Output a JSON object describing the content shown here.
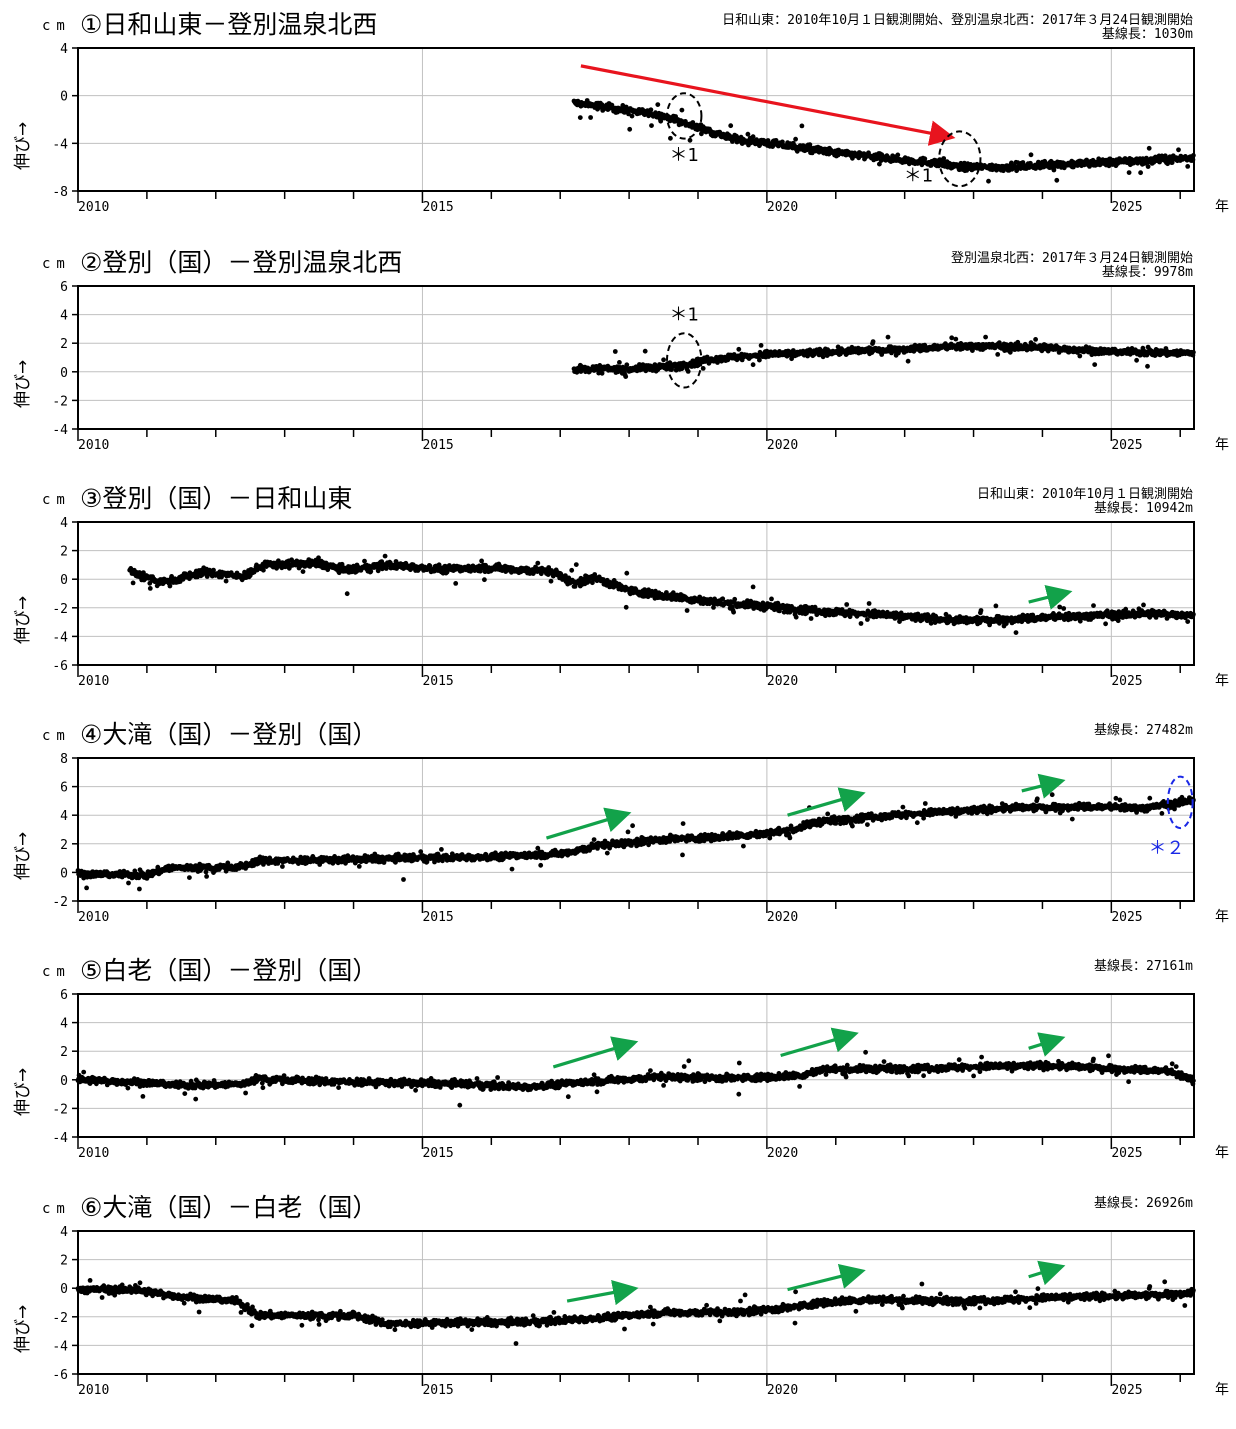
{
  "x_unit_label": "年",
  "y_axis_label": "伸び→",
  "y_unit": "cm",
  "colors": {
    "data": "#000000",
    "grid": "#c0c0c0",
    "red_arrow": "#e8141e",
    "green_arrow": "#12a24a",
    "blue_annotation": "#1a28e6"
  },
  "chart_data": [
    {
      "type": "scatter",
      "title": "①日和山東－登別温泉北西",
      "info_lines": [
        "日和山東：2010年10月１日観測開始、登別温泉北西：2017年３月24日観測開始",
        "基線長：1030m"
      ],
      "ylim": [
        -8,
        4
      ],
      "yticks": [
        4,
        0,
        -4,
        -8
      ],
      "xlim": [
        2010,
        2026.2
      ],
      "xtick_labels": [
        "2010",
        "2015",
        "2020",
        "2025"
      ],
      "grid": true,
      "series": [
        {
          "trend": [
            [
              2017.2,
              -0.6
            ],
            [
              2017.7,
              -1.0
            ],
            [
              2018.5,
              -1.7
            ],
            [
              2018.8,
              -2.3
            ],
            [
              2019.5,
              -3.6
            ],
            [
              2020.3,
              -4.2
            ],
            [
              2021.0,
              -4.8
            ],
            [
              2021.8,
              -5.3
            ],
            [
              2022.4,
              -5.6
            ],
            [
              2022.8,
              -6.0
            ],
            [
              2023.5,
              -6.0
            ],
            [
              2024.5,
              -5.7
            ],
            [
              2025.3,
              -5.5
            ],
            [
              2026.2,
              -5.2
            ]
          ],
          "start": 2017.2,
          "noise": 0.25
        }
      ],
      "annotations": [
        {
          "kind": "arrow",
          "color": "red",
          "from": [
            2017.3,
            2.5
          ],
          "to": [
            2022.6,
            -3.4
          ]
        },
        {
          "kind": "ellipse",
          "color": "black",
          "center": [
            2018.8,
            -1.7
          ],
          "rx": 0.25,
          "ry": 1.9
        },
        {
          "kind": "ellipse",
          "color": "black",
          "center": [
            2022.8,
            -5.3
          ],
          "rx": 0.3,
          "ry": 2.3
        },
        {
          "kind": "text",
          "color": "black",
          "text": "＊1",
          "at": [
            2018.8,
            -5.5
          ]
        },
        {
          "kind": "text",
          "color": "black",
          "text": "＊1",
          "at": [
            2022.2,
            -7.2
          ]
        }
      ]
    },
    {
      "type": "scatter",
      "title": "②登別（国）－登別温泉北西",
      "info_lines": [
        "登別温泉北西：2017年３月24日観測開始",
        "基線長：9978m"
      ],
      "ylim": [
        -4,
        6
      ],
      "yticks": [
        6,
        4,
        2,
        0,
        -2,
        -4
      ],
      "xlim": [
        2010,
        2026.2
      ],
      "xtick_labels": [
        "2010",
        "2015",
        "2020",
        "2025"
      ],
      "grid": true,
      "series": [
        {
          "trend": [
            [
              2017.2,
              0.2
            ],
            [
              2018.0,
              0.2
            ],
            [
              2018.7,
              0.4
            ],
            [
              2019.2,
              0.9
            ],
            [
              2020.0,
              1.2
            ],
            [
              2021.0,
              1.4
            ],
            [
              2022.0,
              1.6
            ],
            [
              2023.0,
              1.8
            ],
            [
              2024.0,
              1.7
            ],
            [
              2025.0,
              1.4
            ],
            [
              2026.2,
              1.3
            ]
          ],
          "start": 2017.2,
          "noise": 0.2
        }
      ],
      "annotations": [
        {
          "kind": "ellipse",
          "color": "black",
          "center": [
            2018.8,
            0.8
          ],
          "rx": 0.25,
          "ry": 1.9
        },
        {
          "kind": "text",
          "color": "black",
          "text": "＊1",
          "at": [
            2018.8,
            3.6
          ]
        }
      ]
    },
    {
      "type": "scatter",
      "title": "③登別（国）－日和山東",
      "info_lines": [
        "日和山東：2010年10月１日観測開始",
        "基線長：10942m"
      ],
      "ylim": [
        -6,
        4
      ],
      "yticks": [
        4,
        2,
        0,
        -2,
        -4,
        -6
      ],
      "xlim": [
        2010,
        2026.2
      ],
      "xtick_labels": [
        "2010",
        "2015",
        "2020",
        "2025"
      ],
      "grid": true,
      "series": [
        {
          "trend": [
            [
              2010.75,
              0.6
            ],
            [
              2011.0,
              0.1
            ],
            [
              2011.3,
              -0.2
            ],
            [
              2011.8,
              0.5
            ],
            [
              2012.4,
              0.2
            ],
            [
              2012.7,
              1.0
            ],
            [
              2013.5,
              1.1
            ],
            [
              2013.9,
              0.6
            ],
            [
              2014.5,
              1.0
            ],
            [
              2015.3,
              0.7
            ],
            [
              2016.0,
              0.8
            ],
            [
              2016.9,
              0.5
            ],
            [
              2017.2,
              -0.3
            ],
            [
              2017.5,
              0.1
            ],
            [
              2018.0,
              -0.8
            ],
            [
              2018.6,
              -1.2
            ],
            [
              2019.2,
              -1.6
            ],
            [
              2020.0,
              -1.9
            ],
            [
              2021.0,
              -2.3
            ],
            [
              2022.0,
              -2.6
            ],
            [
              2022.8,
              -2.9
            ],
            [
              2023.5,
              -2.8
            ],
            [
              2024.5,
              -2.6
            ],
            [
              2025.5,
              -2.4
            ],
            [
              2026.2,
              -2.5
            ]
          ],
          "start": 2010.75,
          "noise": 0.22
        }
      ],
      "annotations": [
        {
          "kind": "arrow",
          "color": "green",
          "from": [
            2023.8,
            -1.6
          ],
          "to": [
            2024.3,
            -1.0
          ]
        }
      ]
    },
    {
      "type": "scatter",
      "title": "④大滝（国）－登別（国）",
      "info_lines": [
        "基線長：27482m"
      ],
      "ylim": [
        -2,
        8
      ],
      "yticks": [
        8,
        6,
        4,
        2,
        0,
        -2
      ],
      "xlim": [
        2010,
        2026.2
      ],
      "xtick_labels": [
        "2010",
        "2015",
        "2020",
        "2025"
      ],
      "grid": true,
      "series": [
        {
          "trend": [
            [
              2010.0,
              -0.1
            ],
            [
              2011.0,
              -0.2
            ],
            [
              2011.3,
              0.3
            ],
            [
              2012.4,
              0.4
            ],
            [
              2012.6,
              0.8
            ],
            [
              2014.0,
              0.9
            ],
            [
              2015.0,
              1.0
            ],
            [
              2016.0,
              1.1
            ],
            [
              2017.0,
              1.3
            ],
            [
              2017.6,
              1.9
            ],
            [
              2018.5,
              2.3
            ],
            [
              2019.0,
              2.4
            ],
            [
              2020.0,
              2.7
            ],
            [
              2020.4,
              3.0
            ],
            [
              2020.7,
              3.5
            ],
            [
              2021.5,
              3.9
            ],
            [
              2022.5,
              4.2
            ],
            [
              2023.5,
              4.5
            ],
            [
              2024.5,
              4.6
            ],
            [
              2025.5,
              4.5
            ],
            [
              2025.9,
              4.8
            ],
            [
              2026.2,
              5.1
            ]
          ],
          "start": 2010.0,
          "noise": 0.2
        }
      ],
      "annotations": [
        {
          "kind": "arrow",
          "color": "green",
          "from": [
            2016.8,
            2.4
          ],
          "to": [
            2017.9,
            4.0
          ]
        },
        {
          "kind": "arrow",
          "color": "green",
          "from": [
            2020.3,
            4.0
          ],
          "to": [
            2021.3,
            5.4
          ]
        },
        {
          "kind": "arrow",
          "color": "green",
          "from": [
            2023.7,
            5.7
          ],
          "to": [
            2024.2,
            6.3
          ]
        },
        {
          "kind": "ellipse",
          "color": "blue",
          "center": [
            2026.0,
            4.9
          ],
          "rx": 0.18,
          "ry": 1.8
        },
        {
          "kind": "text",
          "color": "blue",
          "text": "＊２",
          "at": [
            2025.8,
            1.3
          ]
        }
      ]
    },
    {
      "type": "scatter",
      "title": "⑤白老（国）－登別（国）",
      "info_lines": [
        "基線長：27161m"
      ],
      "ylim": [
        -4,
        6
      ],
      "yticks": [
        6,
        4,
        2,
        0,
        -2,
        -4
      ],
      "xlim": [
        2010,
        2026.2
      ],
      "xtick_labels": [
        "2010",
        "2015",
        "2020",
        "2025"
      ],
      "grid": true,
      "series": [
        {
          "trend": [
            [
              2010.0,
              0.0
            ],
            [
              2011.0,
              -0.2
            ],
            [
              2011.5,
              -0.4
            ],
            [
              2012.4,
              -0.3
            ],
            [
              2012.6,
              0.1
            ],
            [
              2013.5,
              -0.1
            ],
            [
              2014.5,
              -0.2
            ],
            [
              2015.5,
              -0.3
            ],
            [
              2016.5,
              -0.5
            ],
            [
              2017.5,
              -0.1
            ],
            [
              2018.5,
              0.2
            ],
            [
              2019.5,
              0.1
            ],
            [
              2020.5,
              0.3
            ],
            [
              2020.8,
              0.7
            ],
            [
              2022.0,
              0.8
            ],
            [
              2023.0,
              0.9
            ],
            [
              2024.0,
              1.0
            ],
            [
              2025.0,
              0.8
            ],
            [
              2025.8,
              0.6
            ],
            [
              2026.2,
              0.0
            ]
          ],
          "start": 2010.0,
          "noise": 0.2
        }
      ],
      "annotations": [
        {
          "kind": "arrow",
          "color": "green",
          "from": [
            2016.9,
            0.9
          ],
          "to": [
            2018.0,
            2.5
          ]
        },
        {
          "kind": "arrow",
          "color": "green",
          "from": [
            2020.2,
            1.7
          ],
          "to": [
            2021.2,
            3.1
          ]
        },
        {
          "kind": "arrow",
          "color": "green",
          "from": [
            2023.8,
            2.2
          ],
          "to": [
            2024.2,
            2.8
          ]
        }
      ]
    },
    {
      "type": "scatter",
      "title": "⑥大滝（国）－白老（国）",
      "info_lines": [
        "基線長：26926m"
      ],
      "ylim": [
        -6,
        4
      ],
      "yticks": [
        4,
        2,
        0,
        -2,
        -4,
        -6
      ],
      "xlim": [
        2010,
        2026.2
      ],
      "xtick_labels": [
        "2010",
        "2015",
        "2020",
        "2025"
      ],
      "grid": true,
      "series": [
        {
          "trend": [
            [
              2010.0,
              -0.1
            ],
            [
              2010.8,
              -0.1
            ],
            [
              2011.5,
              -0.6
            ],
            [
              2012.3,
              -0.9
            ],
            [
              2012.6,
              -1.9
            ],
            [
              2014.0,
              -1.9
            ],
            [
              2014.5,
              -2.5
            ],
            [
              2015.5,
              -2.4
            ],
            [
              2016.5,
              -2.4
            ],
            [
              2017.5,
              -2.1
            ],
            [
              2018.5,
              -1.7
            ],
            [
              2019.5,
              -1.7
            ],
            [
              2020.3,
              -1.4
            ],
            [
              2020.8,
              -1.0
            ],
            [
              2021.5,
              -0.8
            ],
            [
              2022.5,
              -0.9
            ],
            [
              2023.5,
              -0.8
            ],
            [
              2024.5,
              -0.6
            ],
            [
              2025.5,
              -0.5
            ],
            [
              2026.2,
              -0.3
            ]
          ],
          "start": 2010.0,
          "noise": 0.2
        }
      ],
      "annotations": [
        {
          "kind": "arrow",
          "color": "green",
          "from": [
            2017.1,
            -0.9
          ],
          "to": [
            2018.0,
            -0.1
          ]
        },
        {
          "kind": "arrow",
          "color": "green",
          "from": [
            2020.3,
            -0.1
          ],
          "to": [
            2021.3,
            1.1
          ]
        },
        {
          "kind": "arrow",
          "color": "green",
          "from": [
            2023.8,
            0.8
          ],
          "to": [
            2024.2,
            1.4
          ]
        }
      ]
    }
  ]
}
